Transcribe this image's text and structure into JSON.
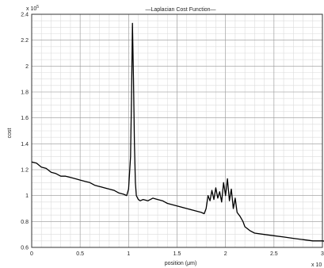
{
  "chart_data": {
    "type": "line",
    "title": "—Laplacian Cost Function—",
    "xlabel": "position (μm)",
    "ylabel": "cost",
    "x_multiplier": "x 10",
    "y_multiplier": "x 10",
    "y_multiplier_exp": "5",
    "xlim": [
      0,
      3
    ],
    "ylim": [
      0.6,
      2.4
    ],
    "grid": true,
    "x_ticks": [
      "0",
      "0.5",
      "1",
      "1.5",
      "2",
      "2.5",
      "3"
    ],
    "y_ticks": [
      "0.6",
      "0.8",
      "1",
      "1.2",
      "1.4",
      "1.6",
      "1.8",
      "2",
      "2.2",
      "2.4"
    ],
    "series": [
      {
        "color": "#000000",
        "x": [
          0.0,
          0.05,
          0.1,
          0.15,
          0.2,
          0.25,
          0.3,
          0.35,
          0.4,
          0.45,
          0.5,
          0.55,
          0.6,
          0.65,
          0.7,
          0.75,
          0.8,
          0.85,
          0.9,
          0.95,
          0.98,
          1.0,
          1.02,
          1.03,
          1.04,
          1.05,
          1.06,
          1.07,
          1.08,
          1.1,
          1.12,
          1.15,
          1.2,
          1.25,
          1.3,
          1.35,
          1.4,
          1.45,
          1.5,
          1.55,
          1.6,
          1.65,
          1.7,
          1.75,
          1.78,
          1.8,
          1.82,
          1.84,
          1.86,
          1.88,
          1.9,
          1.92,
          1.94,
          1.96,
          1.98,
          2.0,
          2.02,
          2.04,
          2.06,
          2.08,
          2.1,
          2.12,
          2.15,
          2.18,
          2.2,
          2.25,
          2.3,
          2.4,
          2.5,
          2.6,
          2.7,
          2.8,
          2.9,
          3.0,
          3.1
        ],
        "y": [
          1.26,
          1.25,
          1.22,
          1.21,
          1.18,
          1.17,
          1.15,
          1.15,
          1.14,
          1.13,
          1.12,
          1.11,
          1.1,
          1.08,
          1.07,
          1.06,
          1.05,
          1.04,
          1.02,
          1.01,
          1.0,
          1.05,
          1.3,
          1.75,
          2.33,
          1.9,
          1.4,
          1.1,
          1.0,
          0.97,
          0.96,
          0.97,
          0.96,
          0.98,
          0.97,
          0.96,
          0.94,
          0.93,
          0.92,
          0.91,
          0.9,
          0.89,
          0.88,
          0.87,
          0.86,
          0.9,
          1.0,
          0.96,
          1.04,
          0.97,
          1.06,
          0.98,
          1.03,
          0.95,
          1.1,
          1.0,
          1.13,
          0.96,
          1.05,
          0.9,
          0.98,
          0.87,
          0.84,
          0.8,
          0.76,
          0.73,
          0.71,
          0.7,
          0.69,
          0.68,
          0.67,
          0.66,
          0.65,
          0.65,
          0.64
        ]
      }
    ]
  }
}
